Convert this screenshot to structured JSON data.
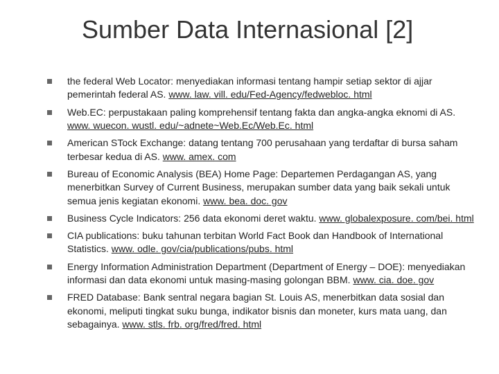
{
  "title": "Sumber Data Internasional [2]",
  "items": [
    {
      "text": "the federal Web Locator: menyediakan informasi tentang hampir setiap sektor di ajjar pemerintah federal AS. ",
      "link": "www. law. vill. edu/Fed-Agency/fedwebloc. html"
    },
    {
      "text": "Web.EC: perpustakaan paling komprehensif tentang fakta dan angka-angka eknomi di AS. ",
      "link": "www. wuecon. wustl. edu/~adnete~Web.Ec/Web.Ec. html"
    },
    {
      "text": "American STock Exchange: datang tentang 700 perusahaan yang terdaftar di bursa saham terbesar kedua di AS. ",
      "link": "www. amex. com"
    },
    {
      "text": "Bureau of Economic Analysis (BEA) Home Page: Departemen Perdagangan AS, yang menerbitkan Survey of Current Business, merupakan sumber data yang baik sekali untuk semua jenis kegiatan ekonomi. ",
      "link": "www. bea. doc. gov"
    },
    {
      "text": "Business Cycle Indicators: 256 data ekonomi deret waktu. ",
      "link": "www. globalexposure. com/bei. html"
    },
    {
      "text": "CIA publications: buku tahunan terbitan World Fact Book dan Handbook of International Statistics. ",
      "link": "www. odle. gov/cia/publications/pubs. html"
    },
    {
      "text": "Energy Information Administration Department (Department of Energy – DOE): menyediakan informasi dan data ekonomi untuk masing-masing golongan BBM. ",
      "link": "www. cia. doe. gov"
    },
    {
      "text": "FRED Database: Bank sentral negara bagian St. Louis AS, menerbitkan data sosial dan ekonomi, meliputi tingkat suku bunga, indikator bisnis dan moneter, kurs mata uang, dan sebagainya. ",
      "link": "www. stls. frb. org/fred/fred. html"
    }
  ]
}
